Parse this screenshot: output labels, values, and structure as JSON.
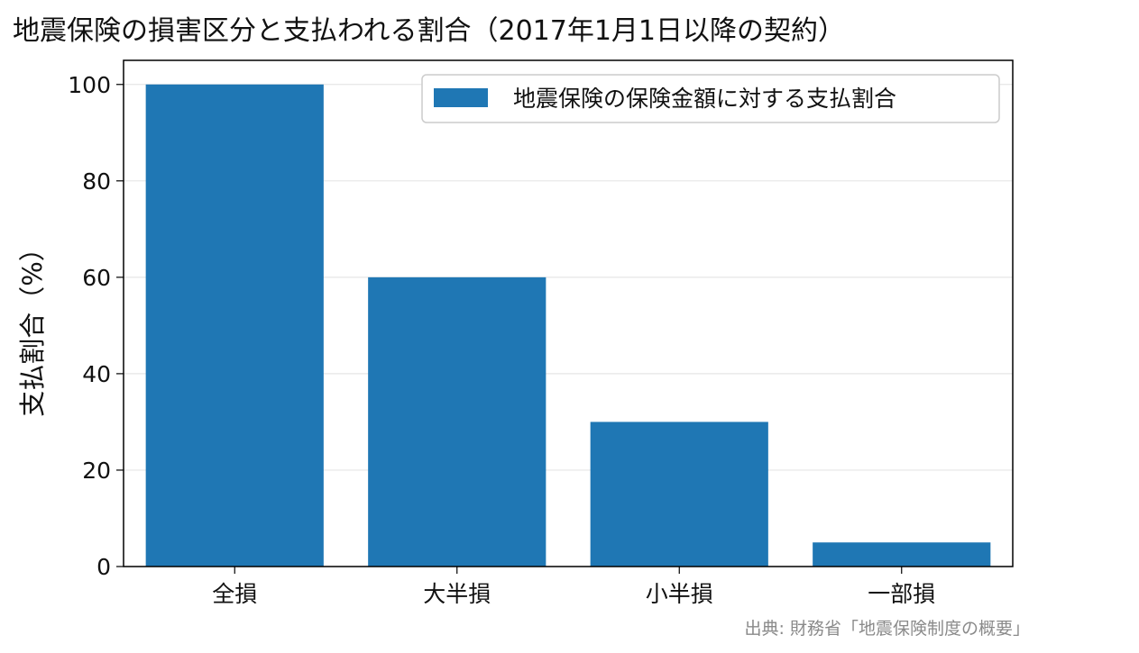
{
  "chart_data": {
    "type": "bar",
    "title": "地震保険の損害区分と支払われる割合（2017年1月1日以降の契約）",
    "xlabel": "",
    "ylabel": "支払割合（%）",
    "categories": [
      "全損",
      "大半損",
      "小半損",
      "一部損"
    ],
    "series": [
      {
        "name": "地震保険の保険金額に対する支払割合",
        "values": [
          100,
          60,
          30,
          5
        ],
        "color": "#1f77b4"
      }
    ],
    "ylim": [
      0,
      105
    ],
    "yticks": [
      "0",
      "20",
      "40",
      "60",
      "80",
      "100"
    ],
    "grid": "y",
    "legend_position": "top-right",
    "source": "出典: 財務省「地震保険制度の概要」"
  }
}
